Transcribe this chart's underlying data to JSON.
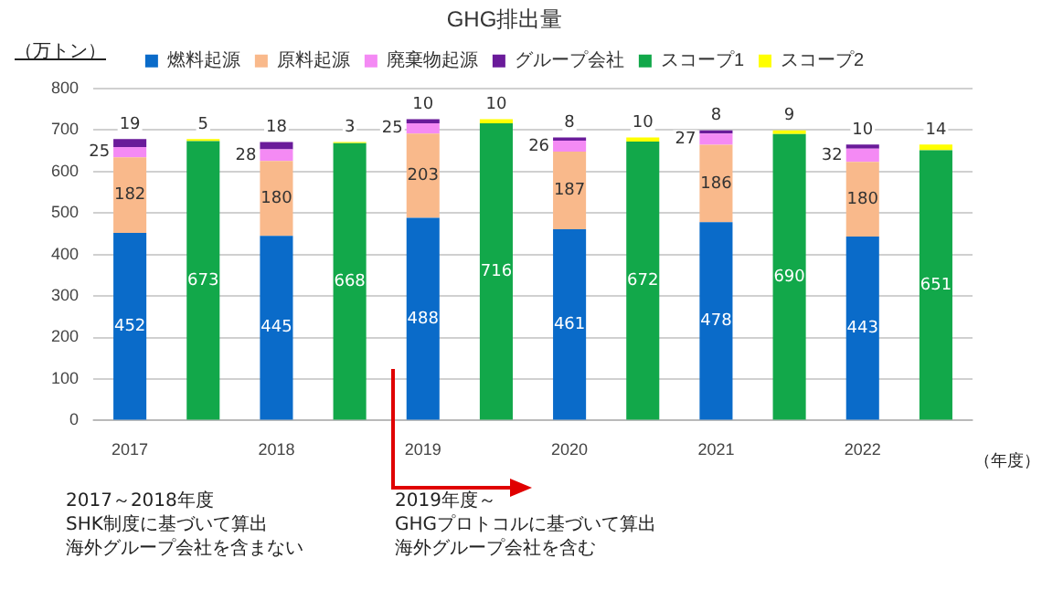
{
  "chart_data": {
    "type": "bar",
    "title": "GHG排出量",
    "ylabel": "（万トン）",
    "xlabel": "（年度）",
    "categories": [
      "2017",
      null,
      "2018",
      null,
      "2019",
      null,
      "2020",
      null,
      "2021",
      null,
      "2022",
      null
    ],
    "series": [
      {
        "name": "燃料起源",
        "color": "#0a6bc9",
        "values": [
          452,
          null,
          445,
          null,
          488,
          null,
          461,
          null,
          478,
          null,
          443,
          null
        ]
      },
      {
        "name": "原料起源",
        "color": "#f9b98b",
        "values": [
          182,
          null,
          180,
          null,
          203,
          null,
          187,
          null,
          186,
          null,
          180,
          null
        ]
      },
      {
        "name": "廃棄物起源",
        "color": "#f48af4",
        "values": [
          25,
          null,
          28,
          null,
          25,
          null,
          26,
          null,
          27,
          null,
          32,
          null
        ]
      },
      {
        "name": "グループ会社",
        "color": "#6a1b9a",
        "values": [
          19,
          null,
          18,
          null,
          10,
          null,
          8,
          null,
          8,
          null,
          10,
          null
        ]
      },
      {
        "name": "スコープ1",
        "color": "#12a84a",
        "values": [
          null,
          673,
          null,
          668,
          null,
          716,
          null,
          672,
          null,
          690,
          null,
          651
        ]
      },
      {
        "name": "スコープ2",
        "color": "#ffff00",
        "values": [
          null,
          5,
          null,
          3,
          null,
          10,
          null,
          10,
          null,
          9,
          null,
          14
        ]
      }
    ],
    "stacked": true,
    "data_labels": true,
    "ylim": [
      0,
      800
    ],
    "yticks": [
      0,
      100,
      200,
      300,
      400,
      500,
      600,
      700,
      800
    ],
    "grid": "y",
    "legend": "top",
    "annotations": [
      "2017～2018年度",
      "SHK制度に基づいて算出",
      "海外グループ会社を含まない",
      "2019年度～",
      "GHGプロトコルに基づいて算出",
      "海外グループ会社を含む"
    ]
  }
}
